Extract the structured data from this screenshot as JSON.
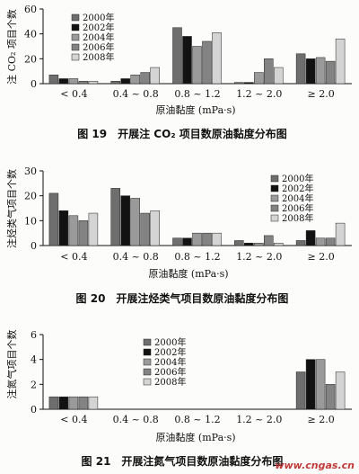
{
  "chart_data": [
    {
      "type": "bar",
      "ylabel": "注 CO₂ 项目个数",
      "xlabel": "原油黏度 (mPa·s)",
      "caption": "图 19　开展注 CO₂ 项目数原油黏度分布图",
      "categories": [
        "< 0.4",
        "0.4 ~ 0.8",
        "0.8 ~ 1.2",
        "1.2 ~ 2.0",
        "≥ 2.0"
      ],
      "ylim": [
        0,
        60
      ],
      "yticks": [
        0,
        20,
        40,
        60
      ],
      "legend_position": "top-left",
      "series": [
        {
          "name": "2000年",
          "values": [
            7,
            2,
            45,
            1,
            24
          ]
        },
        {
          "name": "2002年",
          "values": [
            4,
            4,
            38,
            1,
            20
          ]
        },
        {
          "name": "2004年",
          "values": [
            4,
            7,
            30,
            9,
            21
          ]
        },
        {
          "name": "2006年",
          "values": [
            2,
            9,
            34,
            20,
            18
          ]
        },
        {
          "name": "2008年",
          "values": [
            2,
            13,
            41,
            13,
            36
          ]
        }
      ]
    },
    {
      "type": "bar",
      "ylabel": "注烃类气项目个数",
      "xlabel": "原油黏度 (mPa·s)",
      "caption": "图 20　开展注烃类气项目数原油黏度分布图",
      "categories": [
        "< 0.4",
        "0.4 ~ 0.8",
        "0.8 ~ 1.2",
        "1.2 ~ 2.0",
        "≥ 2.0"
      ],
      "ylim": [
        0,
        30
      ],
      "yticks": [
        0,
        10,
        20,
        30
      ],
      "legend_position": "top-right",
      "series": [
        {
          "name": "2000年",
          "values": [
            21,
            23,
            3,
            2,
            2
          ]
        },
        {
          "name": "2002年",
          "values": [
            14,
            20,
            3,
            1,
            6
          ]
        },
        {
          "name": "2004年",
          "values": [
            12,
            19,
            5,
            1,
            3
          ]
        },
        {
          "name": "2006年",
          "values": [
            10,
            13,
            5,
            4,
            3
          ]
        },
        {
          "name": "2008年",
          "values": [
            13,
            14,
            5,
            1,
            9
          ]
        }
      ]
    },
    {
      "type": "bar",
      "ylabel": "注氮气项目个数",
      "xlabel": "原油黏度 (mPa·s)",
      "caption": "图 21　开展注氮气项目数原油黏度分布图",
      "categories": [
        "< 0.4",
        "0.4 ~ 0.8",
        "0.8 ~ 1.2",
        "1.2 ~ 2.0",
        "≥ 2.0"
      ],
      "ylim": [
        0,
        6
      ],
      "yticks": [
        0,
        2,
        4,
        6
      ],
      "legend_position": "top-center",
      "series": [
        {
          "name": "2000年",
          "values": [
            1,
            0,
            0,
            0,
            3
          ]
        },
        {
          "name": "2002年",
          "values": [
            1,
            0,
            0,
            0,
            4
          ]
        },
        {
          "name": "2004年",
          "values": [
            1,
            0,
            0,
            0,
            4
          ]
        },
        {
          "name": "2006年",
          "values": [
            1,
            0,
            0,
            0,
            2
          ]
        },
        {
          "name": "2008年",
          "values": [
            1,
            0,
            0,
            0,
            3
          ]
        }
      ]
    }
  ],
  "series_colors": [
    "#6e6e6e",
    "#121212",
    "#9a9a9a",
    "#838383",
    "#d4d4d4"
  ],
  "watermark": "www.cngas.cn"
}
